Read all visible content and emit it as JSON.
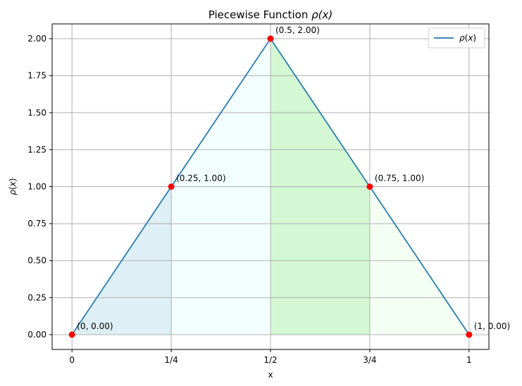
{
  "chart_data": {
    "type": "line",
    "title": "Piecewise Function ρ(x)",
    "xlabel": "x",
    "ylabel": "ρ(x)",
    "xlim": [
      -0.05,
      1.05
    ],
    "ylim": [
      -0.1,
      2.1
    ],
    "x_ticks": [
      {
        "value": 0,
        "label": "0"
      },
      {
        "value": 0.25,
        "label": "1/4"
      },
      {
        "value": 0.5,
        "label": "1/2"
      },
      {
        "value": 0.75,
        "label": "3/4"
      },
      {
        "value": 1,
        "label": "1"
      }
    ],
    "y_ticks": [
      {
        "value": 0,
        "label": "0.00"
      },
      {
        "value": 0.25,
        "label": "0.25"
      },
      {
        "value": 0.5,
        "label": "0.50"
      },
      {
        "value": 0.75,
        "label": "0.75"
      },
      {
        "value": 1,
        "label": "1.00"
      },
      {
        "value": 1.25,
        "label": "1.25"
      },
      {
        "value": 1.5,
        "label": "1.50"
      },
      {
        "value": 1.75,
        "label": "1.75"
      },
      {
        "value": 2,
        "label": "2.00"
      }
    ],
    "grid": true,
    "series": [
      {
        "name": "ρ(x)",
        "x": [
          0,
          0.25,
          0.5,
          0.75,
          1
        ],
        "y": [
          0,
          1,
          2,
          1,
          0
        ],
        "color": "#1f77b4"
      }
    ],
    "points": [
      {
        "x": 0,
        "y": 0,
        "label": "(0, 0.00)"
      },
      {
        "x": 0.25,
        "y": 1,
        "label": "(0.25, 1.00)"
      },
      {
        "x": 0.5,
        "y": 2,
        "label": "(0.5, 2.00)"
      },
      {
        "x": 0.75,
        "y": 1,
        "label": "(0.75, 1.00)"
      },
      {
        "x": 1,
        "y": 0,
        "label": "(1, 0.00)"
      }
    ],
    "point_color": "#ff0000",
    "fills": [
      {
        "x_from": 0,
        "x_to": 0.25,
        "color": "#add8e6",
        "opacity": 0.4
      },
      {
        "x_from": 0.25,
        "x_to": 0.5,
        "color": "#e0ffff",
        "opacity": 0.4
      },
      {
        "x_from": 0.5,
        "x_to": 0.75,
        "color": "#90ee90",
        "opacity": 0.4
      },
      {
        "x_from": 0.75,
        "x_to": 1,
        "color": "#f0fff0",
        "opacity": 0.7
      }
    ],
    "legend": {
      "placement": "top-right",
      "entries": [
        "ρ(x)"
      ]
    }
  }
}
